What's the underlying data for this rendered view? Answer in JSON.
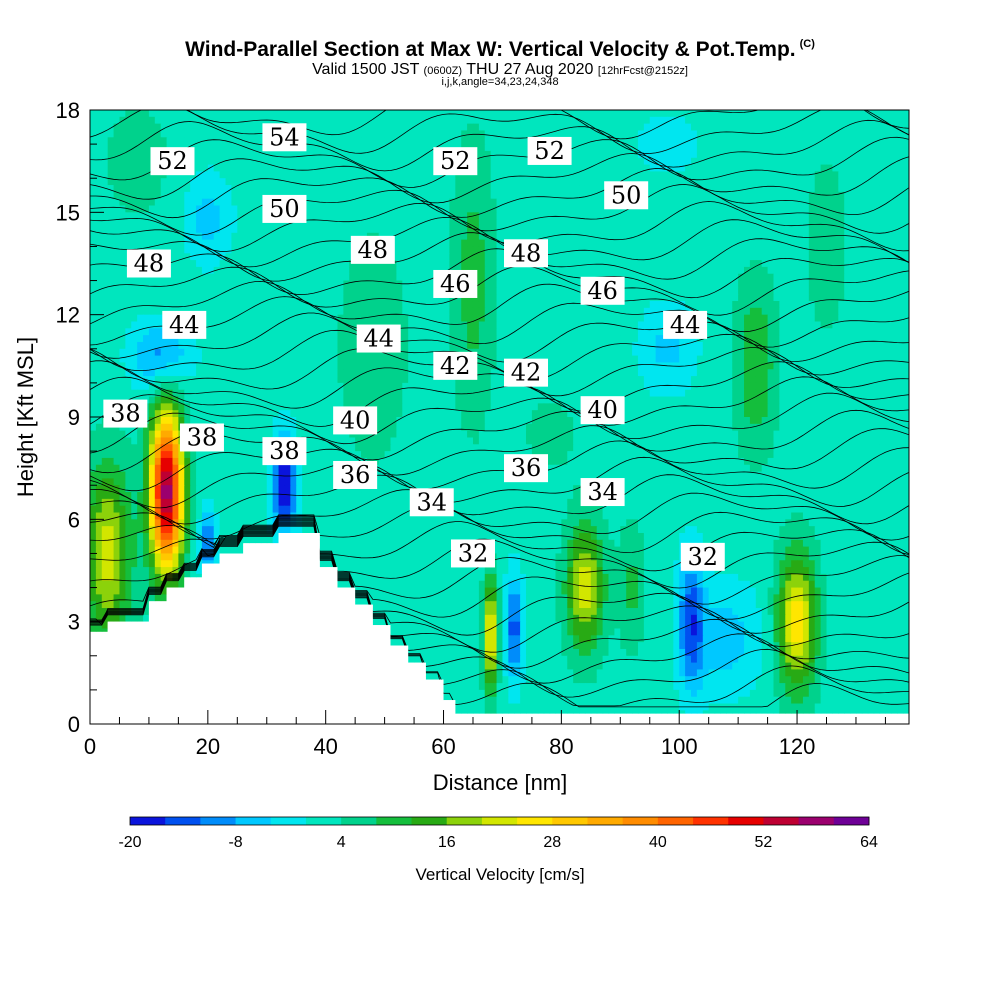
{
  "title": {
    "main": "Wind-Parallel Section at Max W: Vertical Velocity & Pot.Temp.",
    "mark": "(C)",
    "valid": "Valid 1500 JST",
    "valid_z": "(0600Z)",
    "date": "THU 27 Aug 2020",
    "fcst": "[12hrFcst@2152z]",
    "indices": "i,j,k,angle=34,23,24,348"
  },
  "chart_data": {
    "type": "heatmap",
    "xlabel": "Distance [nm]",
    "ylabel": "Height [Kft MSL]",
    "xlim": [
      0,
      139
    ],
    "ylim": [
      0,
      18
    ],
    "x_ticks": [
      0,
      20,
      40,
      60,
      80,
      100,
      120
    ],
    "y_ticks": [
      0,
      3,
      6,
      9,
      12,
      15,
      18
    ],
    "colorbar": {
      "label": "Vertical Velocity [cm/s]",
      "tick_labels": [
        -20,
        -8,
        4,
        16,
        28,
        40,
        52,
        64
      ],
      "bounds": [
        -20,
        -16,
        -12,
        -8,
        -4,
        0,
        4,
        8,
        12,
        16,
        20,
        24,
        28,
        32,
        36,
        40,
        44,
        48,
        52,
        56,
        60,
        64
      ],
      "colors": [
        "#0a14dc",
        "#0050f0",
        "#008cfa",
        "#00c8ff",
        "#00e6f0",
        "#00e6be",
        "#00d28c",
        "#14be3c",
        "#28aa14",
        "#8cd20a",
        "#d2e600",
        "#ffe600",
        "#ffc800",
        "#ffaa00",
        "#ff8c00",
        "#ff6400",
        "#ff3200",
        "#e60000",
        "#be0032",
        "#9b006e",
        "#6e0096"
      ]
    },
    "theta_contour_labels": [
      {
        "x": 14,
        "y": 16.5,
        "v": 52
      },
      {
        "x": 33,
        "y": 17.2,
        "v": 54
      },
      {
        "x": 33,
        "y": 15.1,
        "v": 50
      },
      {
        "x": 62,
        "y": 16.5,
        "v": 52
      },
      {
        "x": 78,
        "y": 16.8,
        "v": 52
      },
      {
        "x": 91,
        "y": 15.5,
        "v": 50
      },
      {
        "x": 10,
        "y": 13.5,
        "v": 48
      },
      {
        "x": 48,
        "y": 13.9,
        "v": 48
      },
      {
        "x": 74,
        "y": 13.8,
        "v": 48
      },
      {
        "x": 62,
        "y": 12.9,
        "v": 46
      },
      {
        "x": 87,
        "y": 12.7,
        "v": 46
      },
      {
        "x": 16,
        "y": 11.7,
        "v": 44
      },
      {
        "x": 49,
        "y": 11.3,
        "v": 44
      },
      {
        "x": 101,
        "y": 11.7,
        "v": 44
      },
      {
        "x": 62,
        "y": 10.5,
        "v": 42
      },
      {
        "x": 74,
        "y": 10.3,
        "v": 42
      },
      {
        "x": 6,
        "y": 9.1,
        "v": 38
      },
      {
        "x": 19,
        "y": 8.4,
        "v": 38
      },
      {
        "x": 33,
        "y": 8.0,
        "v": 38
      },
      {
        "x": 45,
        "y": 8.9,
        "v": 40
      },
      {
        "x": 87,
        "y": 9.2,
        "v": 40
      },
      {
        "x": 45,
        "y": 7.3,
        "v": 36
      },
      {
        "x": 74,
        "y": 7.5,
        "v": 36
      },
      {
        "x": 58,
        "y": 6.5,
        "v": 34
      },
      {
        "x": 87,
        "y": 6.8,
        "v": 34
      },
      {
        "x": 65,
        "y": 5.0,
        "v": 32
      },
      {
        "x": 104,
        "y": 4.9,
        "v": 32
      }
    ],
    "w_cells": [
      {
        "x": 3,
        "y": 5.0,
        "w": 22,
        "sx": 4.0,
        "sy": 2.6
      },
      {
        "x": 13,
        "y": 6.8,
        "w": 58,
        "sx": 2.8,
        "sy": 2.3
      },
      {
        "x": 20,
        "y": 5.3,
        "w": -12,
        "sx": 1.5,
        "sy": 1.0
      },
      {
        "x": 33,
        "y": 7.0,
        "w": -20,
        "sx": 2.0,
        "sy": 1.5
      },
      {
        "x": 68,
        "y": 2.6,
        "w": 26,
        "sx": 1.2,
        "sy": 1.6
      },
      {
        "x": 72,
        "y": 2.8,
        "w": -14,
        "sx": 1.4,
        "sy": 1.6
      },
      {
        "x": 84,
        "y": 4.0,
        "w": 22,
        "sx": 3.2,
        "sy": 1.9
      },
      {
        "x": 92,
        "y": 4.0,
        "w": 9,
        "sx": 2.2,
        "sy": 1.9
      },
      {
        "x": 102,
        "y": 3.0,
        "w": -14,
        "sx": 2.2,
        "sy": 2.0
      },
      {
        "x": 108,
        "y": 2.5,
        "w": -6,
        "sx": 6.0,
        "sy": 1.6
      },
      {
        "x": 120,
        "y": 3.0,
        "w": 27,
        "sx": 3.2,
        "sy": 2.0
      },
      {
        "x": 113,
        "y": 10.5,
        "w": 12,
        "sx": 3.5,
        "sy": 2.5
      },
      {
        "x": 12,
        "y": 10.8,
        "w": -10,
        "sx": 5.0,
        "sy": 1.0
      },
      {
        "x": 20,
        "y": 14.8,
        "w": -6,
        "sx": 4.0,
        "sy": 1.3
      },
      {
        "x": 65,
        "y": 13.0,
        "w": 10,
        "sx": 3.5,
        "sy": 4.0
      },
      {
        "x": 98,
        "y": 11.0,
        "w": -5,
        "sx": 5.0,
        "sy": 1.3
      },
      {
        "x": 48,
        "y": 11.0,
        "w": 7,
        "sx": 6.0,
        "sy": 3.5
      },
      {
        "x": 125,
        "y": 14.0,
        "w": 6,
        "sx": 4.0,
        "sy": 3.0
      },
      {
        "x": 8,
        "y": 16.5,
        "w": 6,
        "sx": 6.0,
        "sy": 1.8
      },
      {
        "x": 98,
        "y": 17.0,
        "w": -4,
        "sx": 5.0,
        "sy": 0.8
      },
      {
        "x": 78,
        "y": 8.5,
        "w": 5,
        "sx": 6.0,
        "sy": 1.5
      }
    ],
    "terrain": [
      [
        0,
        2.7
      ],
      [
        3,
        2.7
      ],
      [
        3,
        3.0
      ],
      [
        10,
        3.0
      ],
      [
        10,
        3.6
      ],
      [
        13,
        3.6
      ],
      [
        13,
        4.0
      ],
      [
        16,
        4.0
      ],
      [
        16,
        4.3
      ],
      [
        19,
        4.3
      ],
      [
        19,
        4.7
      ],
      [
        22,
        4.7
      ],
      [
        22,
        5.0
      ],
      [
        26,
        5.0
      ],
      [
        26,
        5.3
      ],
      [
        32,
        5.3
      ],
      [
        32,
        5.6
      ],
      [
        39,
        5.6
      ],
      [
        39,
        4.6
      ],
      [
        42,
        4.6
      ],
      [
        42,
        4.0
      ],
      [
        45,
        4.0
      ],
      [
        45,
        3.5
      ],
      [
        48,
        3.5
      ],
      [
        48,
        2.9
      ],
      [
        51,
        2.9
      ],
      [
        51,
        2.3
      ],
      [
        54,
        2.3
      ],
      [
        54,
        1.8
      ],
      [
        57,
        1.8
      ],
      [
        57,
        1.3
      ],
      [
        60,
        1.3
      ],
      [
        60,
        0.7
      ],
      [
        62,
        0.7
      ],
      [
        62,
        0.3
      ],
      [
        139,
        0.3
      ]
    ]
  }
}
